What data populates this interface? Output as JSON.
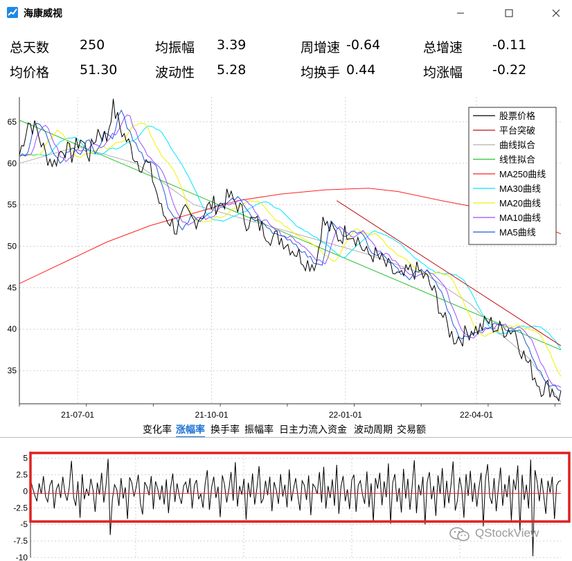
{
  "window": {
    "title": "海康威视",
    "min_icon": "minimize-icon",
    "max_icon": "maximize-icon",
    "close_icon": "close-icon",
    "app_icon": "chart-trend-icon"
  },
  "stats": [
    {
      "label": "总天数",
      "value": "250"
    },
    {
      "label": "均振幅",
      "value": "3.39"
    },
    {
      "label": "周增速",
      "value": "-0.64"
    },
    {
      "label": "总增速",
      "value": "-0.11"
    },
    {
      "label": "均价格",
      "value": "51.30"
    },
    {
      "label": "波动性",
      "value": "5.28"
    },
    {
      "label": "均换手",
      "value": "0.44"
    },
    {
      "label": "均涨幅",
      "value": "-0.22"
    }
  ],
  "tabs": [
    {
      "label": "变化率",
      "active": false
    },
    {
      "label": "涨幅率",
      "active": true
    },
    {
      "label": "换手率",
      "active": false
    },
    {
      "label": "振幅率",
      "active": false
    },
    {
      "label": "日主力流入资金",
      "active": false
    },
    {
      "label": "波动周期",
      "active": false
    },
    {
      "label": "交易额",
      "active": false
    }
  ],
  "watermark": "QStockView",
  "chart_data": [
    {
      "type": "line",
      "title": "",
      "xlabel": "",
      "ylabel": "",
      "x_ticks": [
        "21-07-01",
        "21-10-01",
        "22-01-01",
        "22-04-01"
      ],
      "x_tick_days": [
        40,
        132,
        224,
        314
      ],
      "x_range_days": [
        0,
        372
      ],
      "ylim": [
        31,
        68
      ],
      "y_ticks": [
        35,
        40,
        45,
        50,
        55,
        60,
        65
      ],
      "grid": true,
      "legend_position": "top-right",
      "series": [
        {
          "name": "股票价格",
          "color": "#000000",
          "anchors": [
            [
              0,
              61
            ],
            [
              6,
              65
            ],
            [
              12,
              64
            ],
            [
              18,
              61
            ],
            [
              24,
              60
            ],
            [
              30,
              62
            ],
            [
              36,
              61
            ],
            [
              42,
              63
            ],
            [
              48,
              61
            ],
            [
              54,
              64
            ],
            [
              60,
              63
            ],
            [
              64,
              67
            ],
            [
              70,
              64
            ],
            [
              76,
              62
            ],
            [
              82,
              60
            ],
            [
              88,
              60
            ],
            [
              92,
              58
            ],
            [
              98,
              54
            ],
            [
              104,
              53
            ],
            [
              108,
              52
            ],
            [
              114,
              54
            ],
            [
              120,
              53
            ],
            [
              126,
              54
            ],
            [
              132,
              55
            ],
            [
              138,
              55
            ],
            [
              144,
              56
            ],
            [
              150,
              55
            ],
            [
              156,
              53
            ],
            [
              162,
              53
            ],
            [
              168,
              52
            ],
            [
              174,
              51
            ],
            [
              180,
              51
            ],
            [
              186,
              50
            ],
            [
              192,
              49
            ],
            [
              198,
              48
            ],
            [
              204,
              48
            ],
            [
              208,
              53
            ],
            [
              214,
              52
            ],
            [
              220,
              51
            ],
            [
              226,
              52
            ],
            [
              232,
              51
            ],
            [
              238,
              49
            ],
            [
              244,
              49
            ],
            [
              250,
              48
            ],
            [
              256,
              47
            ],
            [
              262,
              46
            ],
            [
              268,
              47
            ],
            [
              274,
              47
            ],
            [
              280,
              46
            ],
            [
              286,
              44
            ],
            [
              292,
              41
            ],
            [
              298,
              39
            ],
            [
              304,
              39
            ],
            [
              310,
              40
            ],
            [
              316,
              40
            ],
            [
              322,
              41
            ],
            [
              328,
              40
            ],
            [
              334,
              40
            ],
            [
              340,
              40
            ],
            [
              346,
              37
            ],
            [
              352,
              35
            ],
            [
              358,
              33
            ],
            [
              364,
              33
            ],
            [
              370,
              32
            ]
          ],
          "noise": 1.2
        },
        {
          "name": "平台突破",
          "color": "#c01010",
          "points": [
            [
              218,
              55.5
            ],
            [
              372,
              38
            ]
          ]
        },
        {
          "name": "曲线拟合",
          "color": "#b0b0b0",
          "points": [
            [
              0,
              60
            ],
            [
              40,
              62
            ],
            [
              80,
              60
            ],
            [
              120,
              55
            ],
            [
              160,
              53
            ],
            [
              200,
              51
            ],
            [
              240,
              49
            ],
            [
              280,
              46.5
            ],
            [
              310,
              43
            ],
            [
              330,
              39.5
            ],
            [
              350,
              36.5
            ],
            [
              372,
              31.2
            ]
          ]
        },
        {
          "name": "线性拟合",
          "color": "#27c027",
          "points": [
            [
              0,
              65.2
            ],
            [
              372,
              37.5
            ]
          ]
        },
        {
          "name": "MA250曲线",
          "color": "#ff2020",
          "points": [
            [
              0,
              45.5
            ],
            [
              30,
              48
            ],
            [
              60,
              50.5
            ],
            [
              90,
              52.5
            ],
            [
              120,
              54
            ],
            [
              150,
              55.5
            ],
            [
              180,
              56.3
            ],
            [
              210,
              56.8
            ],
            [
              240,
              57
            ],
            [
              260,
              56.6
            ],
            [
              290,
              55.5
            ],
            [
              320,
              54.5
            ],
            [
              350,
              53
            ],
            [
              372,
              51.5
            ]
          ]
        },
        {
          "name": "MA30曲线",
          "color": "#00e5ff",
          "lag": 18,
          "noise": 0.2
        },
        {
          "name": "MA20曲线",
          "color": "#f0f000",
          "lag": 12,
          "noise": 0.3
        },
        {
          "name": "MA10曲线",
          "color": "#9b4dff",
          "lag": 6,
          "noise": 0.5
        },
        {
          "name": "MA5曲线",
          "color": "#1f5ad6",
          "lag": 3,
          "noise": 0.6
        }
      ]
    },
    {
      "type": "line",
      "title": "",
      "ylim": [
        -10,
        6
      ],
      "y_ticks": [
        5,
        2.5,
        0,
        -2.5,
        -5,
        -7.5,
        -10
      ],
      "grid": true,
      "series": [
        {
          "name": "",
          "color": "#000000",
          "values": [
            1.8,
            0.5,
            -0.6,
            -1.5,
            1.2,
            -0.4,
            2.3,
            -0.8,
            -1.6,
            0.9,
            1.7,
            -2.6,
            0.3,
            1.1,
            -1.0,
            2.2,
            -0.3,
            -1.4,
            0.6,
            4.6,
            -0.9,
            -2.2,
            1.5,
            -4.0,
            2.6,
            -1.2,
            0.4,
            -0.7,
            1.9,
            0.2,
            -3.1,
            1.3,
            -0.5,
            2.8,
            -1.7,
            0.8,
            4.9,
            -6.6,
            -1.2,
            1.0,
            0.3,
            -2.2,
            2.0,
            -1.1,
            0.6,
            -4.2,
            2.1,
            1.3,
            -0.8,
            0.6,
            2.5,
            -1.8,
            -3.5,
            1.4,
            0.7,
            -0.6,
            2.3,
            -2.7,
            1.5,
            0.4,
            -1.3,
            0.9,
            -2.0,
            1.8,
            -3.3,
            0.5,
            2.7,
            -1.6,
            1.2,
            -0.7,
            -1.9,
            0.8,
            1.4,
            -0.3,
            2.0,
            -2.6,
            0.9,
            1.7,
            -1.2,
            -0.4,
            -2.5,
            1.1,
            3.2,
            -2.8,
            0.6,
            2.2,
            -1.0,
            0.7,
            -3.9,
            2.4,
            1.0,
            -1.7,
            0.3,
            2.9,
            -1.4,
            4.4,
            -2.3,
            0.8,
            -0.5,
            1.9,
            -4.3,
            1.3,
            -0.9,
            2.7,
            -2.0,
            0.5,
            3.8,
            -1.8,
            -1.1,
            1.6,
            -0.6,
            2.2,
            -3.0,
            1.4,
            0.2,
            -1.9,
            2.6,
            -0.8,
            1.0,
            -2.4,
            3.3,
            -1.5,
            0.4,
            2.0,
            -0.7,
            -2.9,
            1.6,
            0.9,
            -1.3,
            2.4,
            -3.6,
            1.1,
            0.6,
            -0.4,
            2.9,
            -1.7,
            3.7,
            -2.6,
            0.8,
            -1.0,
            1.8,
            -2.2,
            4.0,
            -3.4,
            0.7,
            2.3,
            -1.5,
            0.3,
            -2.7,
            1.7,
            2.5,
            -3.1,
            0.9,
            1.6,
            -0.5,
            -1.9,
            3.0,
            -2.4,
            1.2,
            -4.6,
            2.0,
            0.4,
            2.8,
            -2.1,
            1.5,
            -0.9,
            4.2,
            -4.9,
            1.3,
            2.6,
            -1.6,
            0.5,
            -3.2,
            3.4,
            -1.1,
            1.9,
            -2.8,
            0.7,
            4.7,
            -3.3,
            1.0,
            -0.6,
            2.2,
            -5.0,
            1.4,
            2.9,
            -1.2,
            0.8,
            -3.7,
            2.4,
            -0.4,
            3.5,
            -2.5,
            1.6,
            -1.8,
            0.9,
            4.5,
            -2.9,
            -1.4,
            2.1,
            0.3,
            -4.0,
            2.6,
            -0.7,
            3.1,
            -1.6,
            1.3,
            -2.3,
            0.6,
            2.8,
            -5.3,
            1.7,
            4.1,
            -0.8,
            -1.9,
            2.0,
            -3.0,
            0.5,
            3.6,
            -2.2,
            1.1,
            -0.9,
            2.4,
            -4.4,
            1.8,
            0.2,
            3.9,
            -6.0,
            2.5,
            -1.3,
            1.0,
            -2.6,
            4.8,
            -9.8,
            3.2,
            1.4,
            -1.5,
            2.0,
            -0.6,
            -3.4,
            1.6,
            -0.2,
            2.2,
            -4.2,
            0.9,
            1.5,
            1.6
          ]
        }
      ],
      "zero_line_color": "#ff2020",
      "highlight_box_color": "#e02020"
    }
  ]
}
